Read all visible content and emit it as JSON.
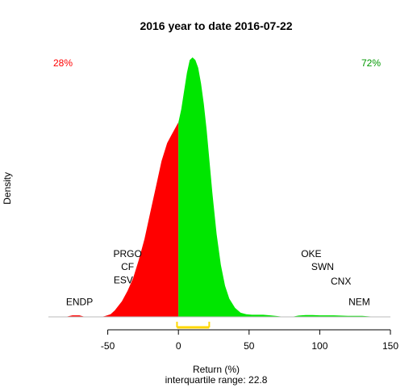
{
  "chart_data": {
    "type": "area",
    "title": "2016  year to date 2016-07-22",
    "xlabel": "Return (%)",
    "subtitle": "interquartile range: 22.8",
    "ylabel": "Density",
    "xlim": [
      -92,
      150
    ],
    "ylim": [
      0,
      1.05
    ],
    "x_ticks": [
      -50,
      0,
      50,
      100,
      150
    ],
    "negative_share": "28%",
    "positive_share": "72%",
    "colors": {
      "negative": "#ff0000",
      "positive": "#00e600",
      "iqr": "#ffd700",
      "text_negative": "#ff0000",
      "text_positive": "#009900"
    },
    "iqr": [
      -1,
      21.8
    ],
    "density": {
      "x": [
        -80,
        -75,
        -70,
        -66,
        -60,
        -55,
        -52,
        -48,
        -45,
        -40,
        -36,
        -32,
        -28,
        -24,
        -20,
        -16,
        -12,
        -8,
        -5,
        -3,
        -1,
        0,
        2,
        4,
        6,
        8,
        10,
        12,
        14,
        16,
        18,
        20,
        22,
        24,
        27,
        30,
        33,
        36,
        40,
        44,
        48,
        52,
        56,
        60,
        65,
        70,
        75,
        80,
        85,
        90,
        95,
        100,
        110,
        120,
        130,
        140
      ],
      "y": [
        0,
        0.006,
        0.006,
        0,
        0,
        0,
        0.003,
        0.01,
        0.025,
        0.06,
        0.1,
        0.15,
        0.22,
        0.3,
        0.4,
        0.5,
        0.6,
        0.67,
        0.7,
        0.72,
        0.74,
        0.75,
        0.8,
        0.87,
        0.94,
        0.99,
        1.0,
        0.99,
        0.96,
        0.9,
        0.82,
        0.72,
        0.6,
        0.48,
        0.32,
        0.2,
        0.12,
        0.07,
        0.035,
        0.016,
        0.01,
        0.008,
        0.008,
        0.008,
        0.006,
        0.003,
        0,
        0,
        0.005,
        0.007,
        0.007,
        0.006,
        0.006,
        0.004,
        0.004,
        0
      ]
    },
    "annotations": [
      {
        "label": "ENDP",
        "x": -70,
        "y": 0.045
      },
      {
        "label": "PRGO",
        "x": -36,
        "y": 0.23
      },
      {
        "label": "CF",
        "x": -36,
        "y": 0.18
      },
      {
        "label": "ESV",
        "x": -39,
        "y": 0.13
      },
      {
        "label": "OKE",
        "x": 94,
        "y": 0.23
      },
      {
        "label": "SWN",
        "x": 102,
        "y": 0.18
      },
      {
        "label": "CNX",
        "x": 115,
        "y": 0.125
      },
      {
        "label": "NEM",
        "x": 128,
        "y": 0.045
      }
    ]
  }
}
